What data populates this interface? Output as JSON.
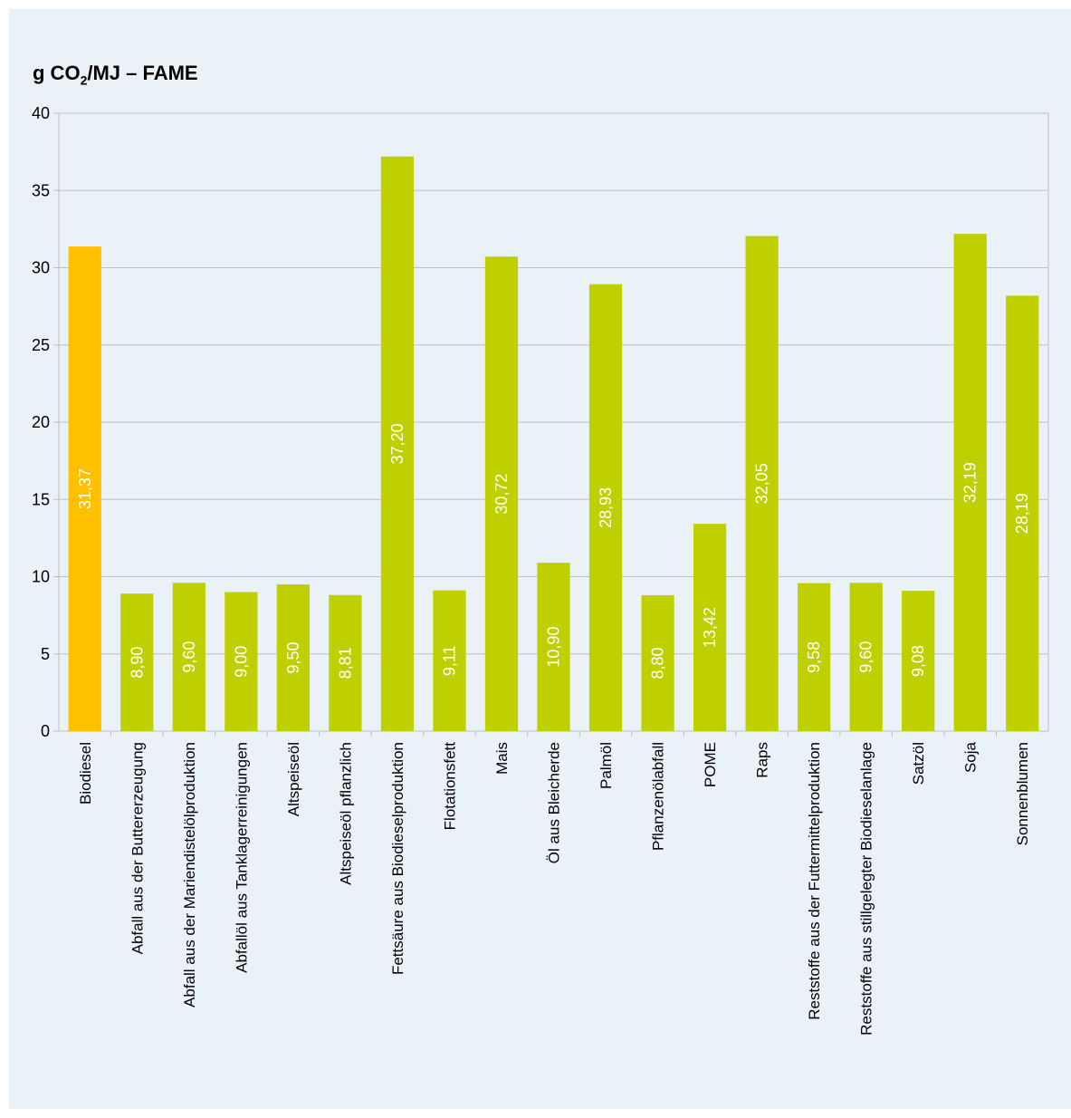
{
  "chart_data": {
    "type": "bar",
    "title_main": "g CO",
    "title_sub": "2",
    "title_rest": "/MJ – FAME",
    "ylim": [
      0,
      40
    ],
    "yticks": [
      0,
      5,
      10,
      15,
      20,
      25,
      30,
      35,
      40
    ],
    "categories": [
      "Biodiesel",
      "Abfall aus der Buttererzeugung",
      "Abfall aus der Mariendistelölproduktion",
      "Abfallöl aus Tanklagerreinigungen",
      "Altspeiseöl",
      "Altspeiseöl pflanzlich",
      "Fettsäure aus Biodieselproduktion",
      "Flotationsfett",
      "Mais",
      "Öl aus Bleicherde",
      "Palmöl",
      "Pflanzenölabfall",
      "POME",
      "Raps",
      "Reststoffe aus der Futtermittelproduktion",
      "Reststoffe aus stillgelegter Biodieselanlage",
      "Satzöl",
      "Soja",
      "Sonnenblumen"
    ],
    "values": [
      31.37,
      8.9,
      9.6,
      9.0,
      9.5,
      8.81,
      37.2,
      9.11,
      30.72,
      10.9,
      28.93,
      8.8,
      13.42,
      32.05,
      9.58,
      9.6,
      9.08,
      32.19,
      28.19
    ],
    "labels": [
      "31,37",
      "8,90",
      "9,60",
      "9,00",
      "9,50",
      "8,81",
      "37,20",
      "9,11",
      "30,72",
      "10,90",
      "28,93",
      "8,80",
      "13,42",
      "32,05",
      "9,58",
      "9,60",
      "9,08",
      "32,19",
      "28,19"
    ],
    "colors": {
      "highlight": "#ffc000",
      "bar": "#bfd000",
      "grid": "#c0c0c0",
      "label": "#ffffff"
    },
    "grid": true
  }
}
